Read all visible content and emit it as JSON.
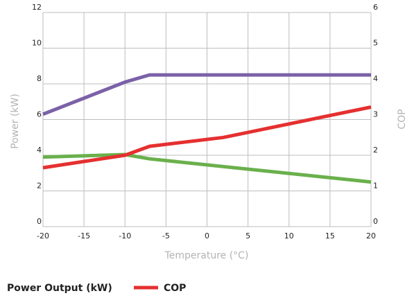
{
  "chart_data": {
    "type": "line",
    "xlabel": "Temperature (°C)",
    "ylabel_left": "Power (kW)",
    "ylabel_right": "COP",
    "xlim": [
      -20,
      20
    ],
    "ylim_left": [
      0,
      12
    ],
    "ylim_right": [
      0,
      6
    ],
    "x_ticks": [
      "-20",
      "-15",
      "-10",
      "-5",
      "0",
      "5",
      "10",
      "15",
      "20"
    ],
    "y_left_ticks": [
      "0",
      "2",
      "4",
      "6",
      "8",
      "10",
      "12"
    ],
    "y_right_ticks": [
      "0",
      "1",
      "2",
      "3",
      "4",
      "5",
      "6"
    ],
    "grid": true,
    "legend_position": "bottom-left",
    "series": [
      {
        "axis": "left",
        "color": "#7b61a8",
        "points": [
          [
            -20,
            6.3
          ],
          [
            -10,
            8.1
          ],
          [
            -7,
            8.5
          ],
          [
            20,
            8.5
          ]
        ]
      },
      {
        "axis": "left",
        "color": "#e53030",
        "points": [
          [
            -20,
            3.3
          ],
          [
            -10,
            4.0
          ],
          [
            -7,
            4.5
          ],
          [
            2,
            5.0
          ],
          [
            20,
            6.7
          ]
        ]
      },
      {
        "axis": "right",
        "color": "#6ab04c",
        "points": [
          [
            -20,
            1.95
          ],
          [
            -10,
            2.02
          ],
          [
            -7,
            1.9
          ],
          [
            20,
            1.25
          ]
        ]
      }
    ]
  },
  "legend": {
    "items": [
      {
        "label": "Power Output (kW)",
        "color": ""
      },
      {
        "label": "COP",
        "color": "#e53030"
      }
    ]
  }
}
